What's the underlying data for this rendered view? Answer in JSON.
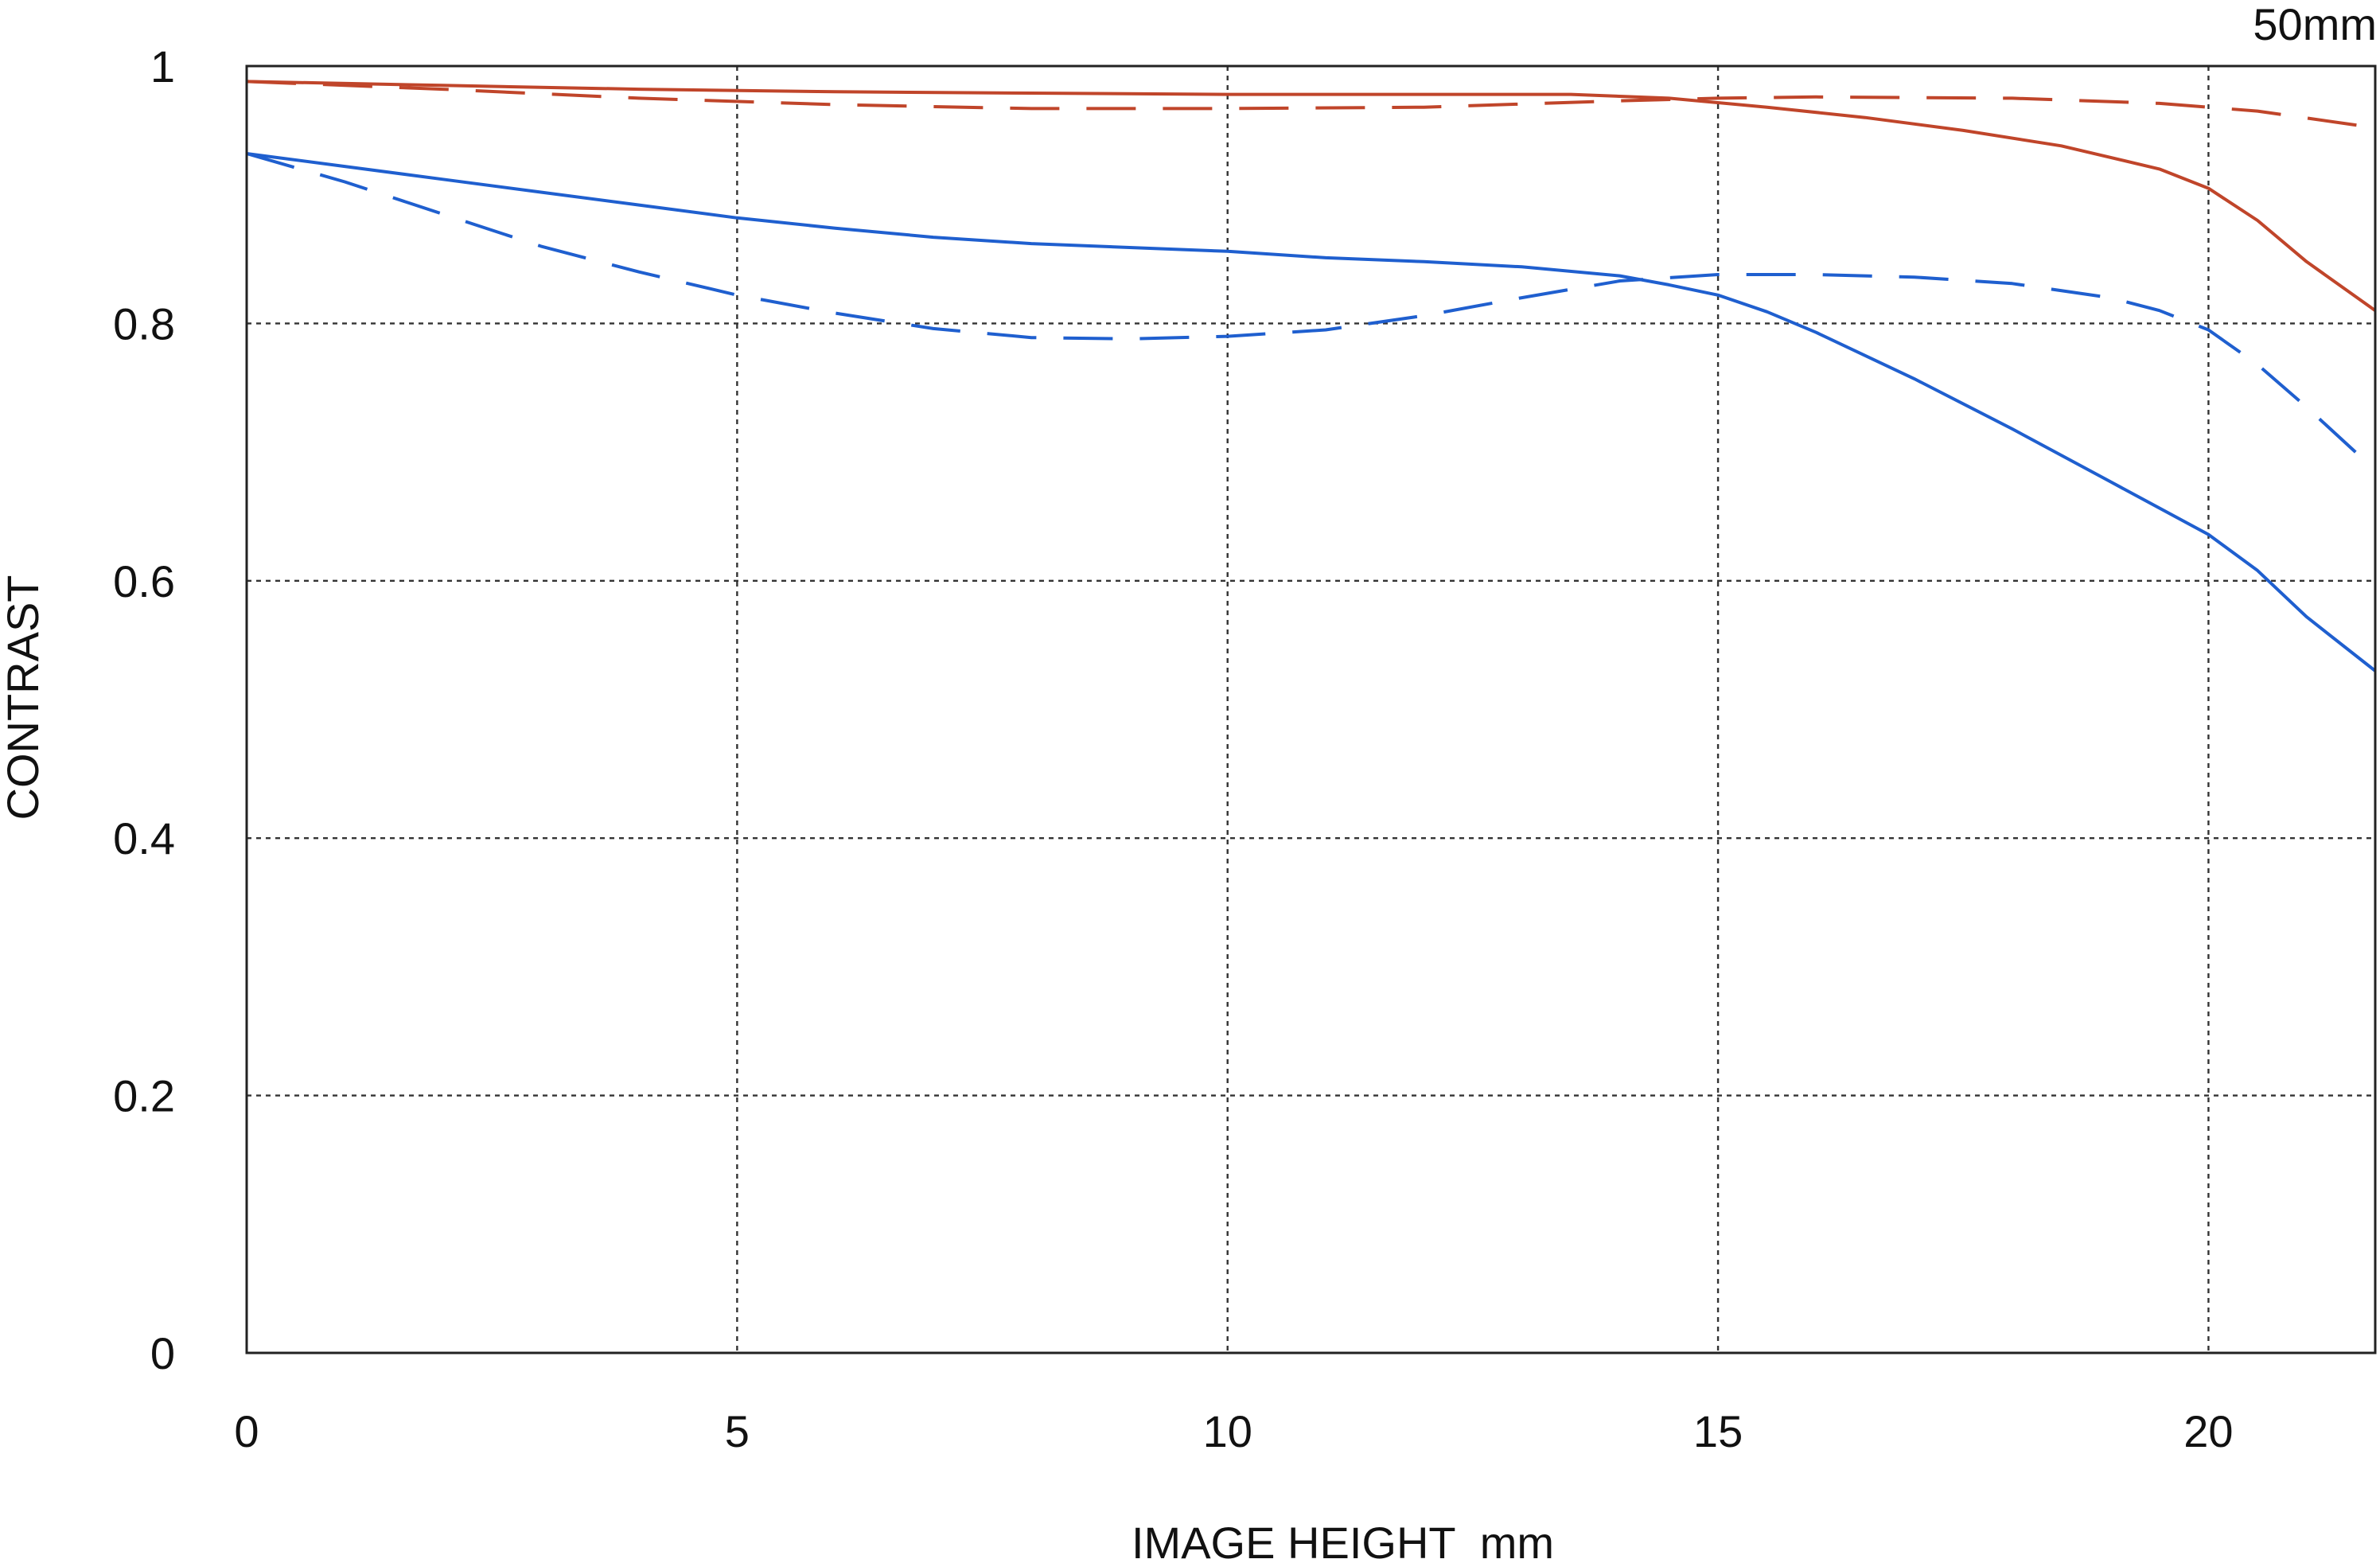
{
  "chart_data": {
    "type": "line",
    "title": "",
    "corner_label": "50mm",
    "xlabel": "IMAGE HEIGHT  mm",
    "ylabel": "CONTRAST",
    "xlim": [
      0,
      21.7
    ],
    "ylim": [
      0,
      1
    ],
    "x_ticks": [
      0,
      5,
      10,
      15,
      20
    ],
    "x_tick_labels": [
      "0",
      "5",
      "10",
      "15",
      "20"
    ],
    "y_ticks": [
      0,
      0.2,
      0.4,
      0.6,
      0.8,
      1
    ],
    "y_tick_labels": [
      "0",
      "0.2",
      "0.4",
      "0.6",
      "0.8",
      "1"
    ],
    "grid": true,
    "legend": "none",
    "series": [
      {
        "color": "#c0452a",
        "style": "solid",
        "points": [
          [
            0,
            0.988
          ],
          [
            2,
            0.985
          ],
          [
            4,
            0.982
          ],
          [
            6,
            0.98
          ],
          [
            8,
            0.979
          ],
          [
            10,
            0.978
          ],
          [
            12,
            0.978
          ],
          [
            13.5,
            0.978
          ],
          [
            14.5,
            0.975
          ],
          [
            15.5,
            0.968
          ],
          [
            16.5,
            0.96
          ],
          [
            17.5,
            0.95
          ],
          [
            18.5,
            0.938
          ],
          [
            19.5,
            0.92
          ],
          [
            20,
            0.905
          ],
          [
            20.5,
            0.88
          ],
          [
            21,
            0.848
          ],
          [
            21.7,
            0.81
          ]
        ]
      },
      {
        "color": "#c0452a",
        "style": "dashed",
        "points": [
          [
            0,
            0.988
          ],
          [
            2,
            0.982
          ],
          [
            4,
            0.975
          ],
          [
            6,
            0.97
          ],
          [
            8,
            0.967
          ],
          [
            10,
            0.967
          ],
          [
            12,
            0.968
          ],
          [
            14,
            0.973
          ],
          [
            15,
            0.975
          ],
          [
            16,
            0.976
          ],
          [
            18,
            0.975
          ],
          [
            19.5,
            0.971
          ],
          [
            20.5,
            0.965
          ],
          [
            21.7,
            0.952
          ]
        ]
      },
      {
        "color": "#1f5fcf",
        "style": "solid",
        "points": [
          [
            0,
            0.932
          ],
          [
            1,
            0.922
          ],
          [
            2,
            0.912
          ],
          [
            3,
            0.902
          ],
          [
            4,
            0.892
          ],
          [
            5,
            0.882
          ],
          [
            6,
            0.874
          ],
          [
            7,
            0.867
          ],
          [
            8,
            0.862
          ],
          [
            9,
            0.859
          ],
          [
            10,
            0.856
          ],
          [
            11,
            0.851
          ],
          [
            12,
            0.848
          ],
          [
            13,
            0.844
          ],
          [
            14,
            0.837
          ],
          [
            14.5,
            0.83
          ],
          [
            15,
            0.822
          ],
          [
            15.5,
            0.809
          ],
          [
            16,
            0.793
          ],
          [
            17,
            0.757
          ],
          [
            18,
            0.718
          ],
          [
            19,
            0.677
          ],
          [
            20,
            0.636
          ],
          [
            20.5,
            0.608
          ],
          [
            21,
            0.572
          ],
          [
            21.7,
            0.53
          ]
        ]
      },
      {
        "color": "#1f5fcf",
        "style": "dashed",
        "points": [
          [
            0,
            0.932
          ],
          [
            1,
            0.91
          ],
          [
            2,
            0.885
          ],
          [
            3,
            0.86
          ],
          [
            4,
            0.84
          ],
          [
            5,
            0.822
          ],
          [
            6,
            0.808
          ],
          [
            7,
            0.796
          ],
          [
            8,
            0.789
          ],
          [
            9,
            0.788
          ],
          [
            10,
            0.79
          ],
          [
            11,
            0.795
          ],
          [
            12,
            0.806
          ],
          [
            13,
            0.82
          ],
          [
            14,
            0.833
          ],
          [
            15,
            0.838
          ],
          [
            16,
            0.838
          ],
          [
            17,
            0.836
          ],
          [
            18,
            0.831
          ],
          [
            19,
            0.82
          ],
          [
            19.5,
            0.81
          ],
          [
            20,
            0.795
          ],
          [
            20.5,
            0.768
          ],
          [
            21,
            0.735
          ],
          [
            21.5,
            0.7
          ]
        ]
      }
    ]
  }
}
